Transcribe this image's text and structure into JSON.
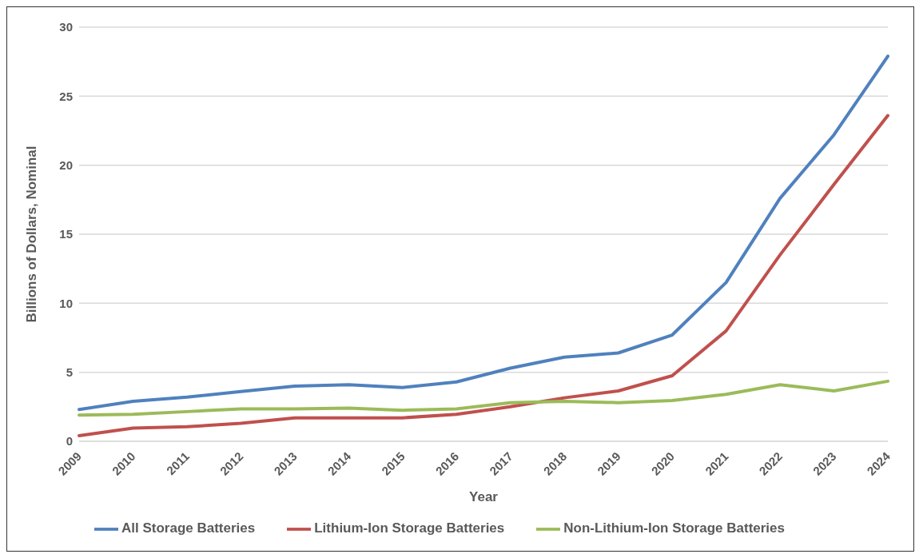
{
  "chart_data": {
    "type": "line",
    "xlabel": "Year",
    "ylabel": "Billions of Dollars, Nominal",
    "categories": [
      "2009",
      "2010",
      "2011",
      "2012",
      "2013",
      "2014",
      "2015",
      "2016",
      "2017",
      "2018",
      "2019",
      "2020",
      "2021",
      "2022",
      "2023",
      "2024"
    ],
    "series": [
      {
        "name": "All Storage Batteries",
        "color": "#4f81bd",
        "values": [
          2.3,
          2.9,
          3.2,
          3.6,
          4.0,
          4.1,
          3.9,
          4.3,
          5.3,
          6.1,
          6.4,
          7.7,
          11.5,
          17.6,
          22.2,
          27.9
        ]
      },
      {
        "name": "Lithium-Ion Storage Batteries",
        "color": "#c0504d",
        "values": [
          0.4,
          0.95,
          1.05,
          1.3,
          1.7,
          1.7,
          1.7,
          1.95,
          2.5,
          3.15,
          3.65,
          4.75,
          8.0,
          13.5,
          18.6,
          23.6
        ]
      },
      {
        "name": "Non-Lithium-Ion Storage Batteries",
        "color": "#9bbb59",
        "values": [
          1.9,
          1.95,
          2.15,
          2.35,
          2.35,
          2.4,
          2.25,
          2.35,
          2.8,
          2.9,
          2.8,
          2.95,
          3.4,
          4.1,
          3.65,
          4.35
        ]
      }
    ],
    "ylim": [
      0,
      30
    ],
    "yticks": [
      0,
      5,
      10,
      15,
      20,
      25,
      30
    ],
    "grid": "y",
    "legend": "bottom",
    "marker": "none",
    "line_style": "solid"
  }
}
